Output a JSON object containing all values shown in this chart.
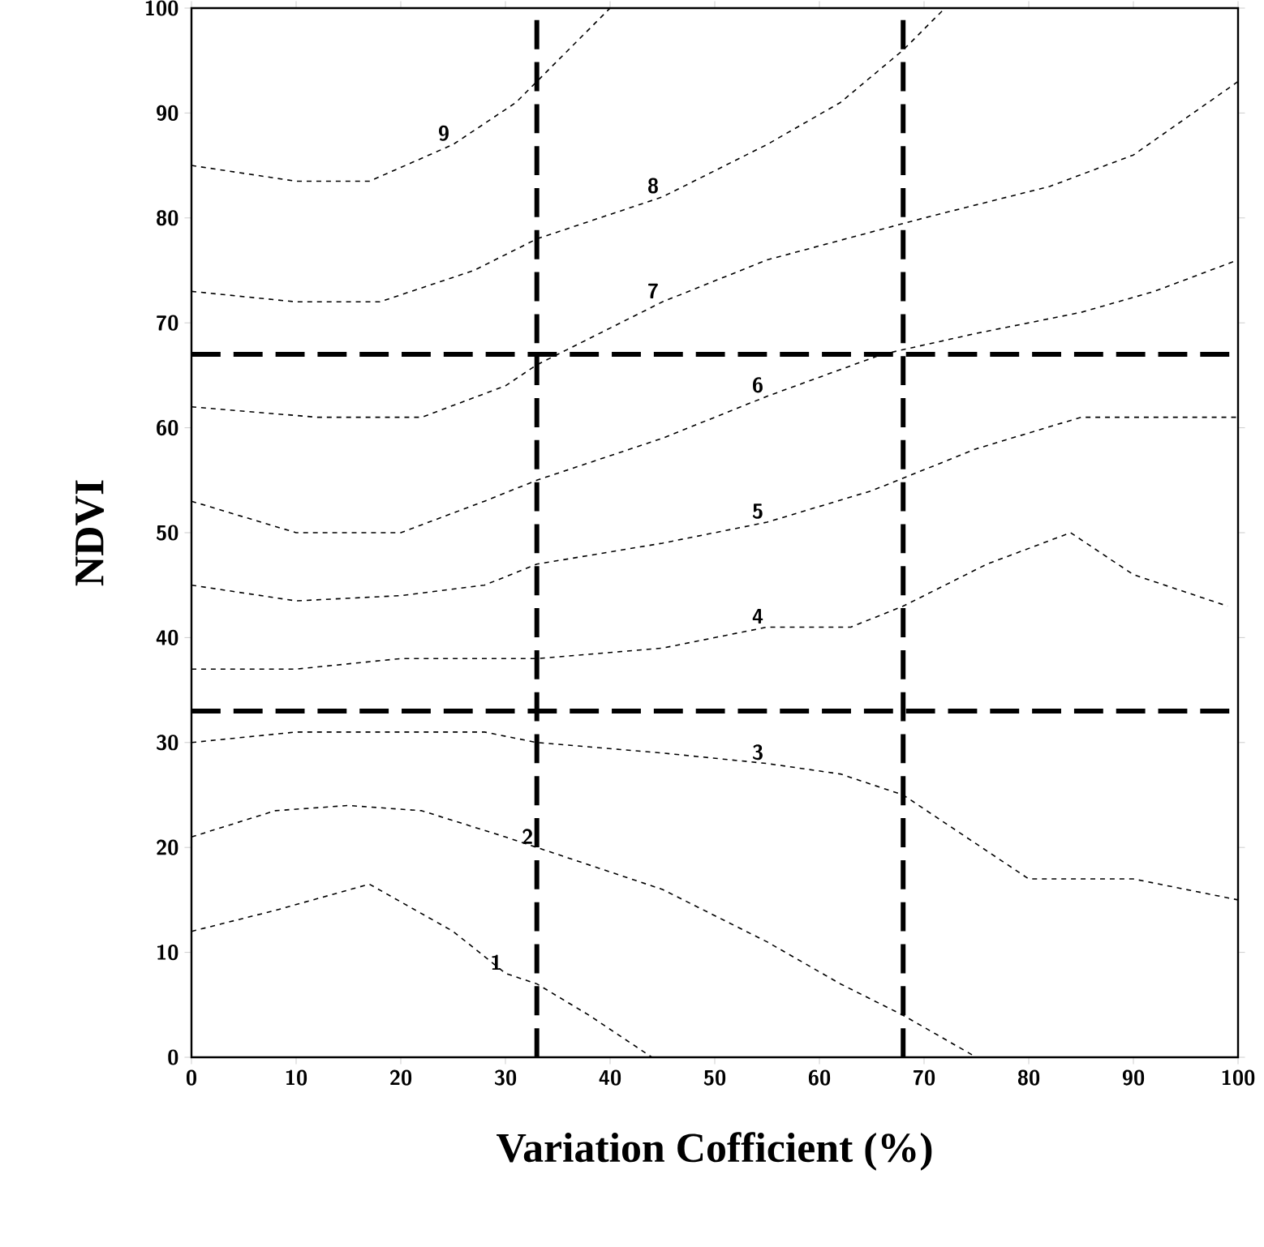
{
  "chart_data": {
    "type": "line",
    "xlabel": "Variation Cofficient (%)",
    "ylabel": "NDVI",
    "xlim": [
      0,
      100
    ],
    "ylim": [
      0,
      100
    ],
    "xticks": [
      0,
      10,
      20,
      30,
      40,
      50,
      60,
      70,
      80,
      90,
      100
    ],
    "yticks": [
      0,
      10,
      20,
      30,
      40,
      50,
      60,
      70,
      80,
      90,
      100
    ],
    "grid": false,
    "legend": false,
    "marker": "none",
    "line_style": "dashed",
    "ref_lines": [
      {
        "axis": "x",
        "value": 33,
        "color": "#000000",
        "line_style": "dashed"
      },
      {
        "axis": "x",
        "value": 68,
        "color": "#000000",
        "line_style": "dashed"
      },
      {
        "axis": "y",
        "value": 33,
        "color": "#000000",
        "line_style": "dashed"
      },
      {
        "axis": "y",
        "value": 67,
        "color": "#000000",
        "line_style": "dashed"
      }
    ],
    "series": [
      {
        "name": "9",
        "color": "#000000",
        "x": [
          0,
          10,
          17,
          25,
          31,
          36,
          40
        ],
        "values": [
          85,
          83.5,
          83.5,
          87,
          91,
          96,
          100
        ]
      },
      {
        "name": "8",
        "color": "#000000",
        "x": [
          0,
          10,
          18,
          27,
          33,
          45,
          55,
          62,
          68,
          72
        ],
        "values": [
          73,
          72,
          72,
          75,
          78,
          82,
          87,
          91,
          96,
          100
        ]
      },
      {
        "name": "7",
        "color": "#000000",
        "x": [
          0,
          12,
          22,
          30,
          33,
          45,
          55,
          70,
          82,
          90,
          100
        ],
        "values": [
          62,
          61,
          61,
          64,
          66,
          72,
          76,
          80,
          83,
          86,
          93
        ]
      },
      {
        "name": "6",
        "color": "#000000",
        "x": [
          0,
          10,
          20,
          28,
          33,
          45,
          55,
          66,
          75,
          85,
          92,
          100
        ],
        "values": [
          53,
          50,
          50,
          53,
          55,
          59,
          63,
          67,
          69,
          71,
          73,
          76
        ]
      },
      {
        "name": "5",
        "color": "#000000",
        "x": [
          0,
          10,
          20,
          28,
          33,
          45,
          55,
          65,
          75,
          85,
          92,
          100
        ],
        "values": [
          45,
          43.5,
          44,
          45,
          47,
          49,
          51,
          54,
          58,
          61,
          61,
          61
        ]
      },
      {
        "name": "4",
        "color": "#000000",
        "x": [
          0,
          10,
          20,
          28,
          33,
          45,
          55,
          63,
          68,
          76,
          84,
          90,
          99
        ],
        "values": [
          37,
          37,
          38,
          38,
          38,
          39,
          41,
          41,
          43,
          47,
          50,
          46,
          43
        ]
      },
      {
        "name": "3",
        "color": "#000000",
        "x": [
          0,
          10,
          20,
          28,
          33,
          45,
          55,
          62,
          68,
          74,
          80,
          90,
          100
        ],
        "values": [
          30,
          31,
          31,
          31,
          30,
          29,
          28,
          27,
          25,
          21,
          17,
          17,
          15
        ]
      },
      {
        "name": "2",
        "color": "#000000",
        "x": [
          0,
          8,
          15,
          22,
          30,
          33,
          45,
          55,
          62,
          68,
          75
        ],
        "values": [
          21,
          23.5,
          24,
          23.5,
          21,
          20,
          16,
          11,
          7,
          4,
          0
        ]
      },
      {
        "name": "1",
        "color": "#000000",
        "x": [
          0,
          8,
          17,
          25,
          30,
          33,
          38,
          44
        ],
        "values": [
          12,
          14,
          16.5,
          12,
          8,
          7,
          4,
          0
        ]
      }
    ]
  }
}
